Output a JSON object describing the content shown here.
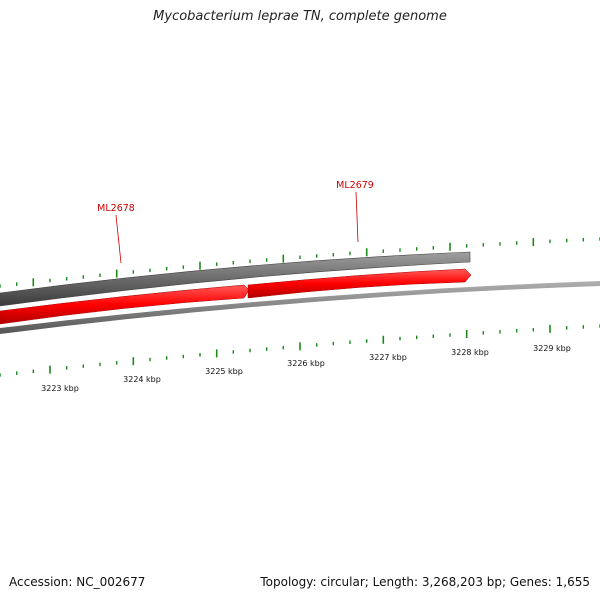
{
  "title": "Mycobacterium leprae TN, complete genome",
  "accession": "Accession: NC_002677",
  "summary": "Topology: circular; Length: 3,268,203 bp; Genes: 1,655",
  "genes": [
    {
      "name": "ML2678",
      "strand": "+",
      "color": "#ff0000"
    },
    {
      "name": "ML2679",
      "strand": "+",
      "color": "#ff0000"
    }
  ],
  "scale": {
    "unit": "kbp",
    "major_labels": [
      "3223 kbp",
      "3224 kbp",
      "3225 kbp",
      "3226 kbp",
      "3227 kbp",
      "3228 kbp",
      "3229 kbp"
    ]
  },
  "colors": {
    "gene": "#ff0000",
    "backbone": "#808080",
    "tick": "#1a8a1a",
    "label": "#cc0000"
  }
}
